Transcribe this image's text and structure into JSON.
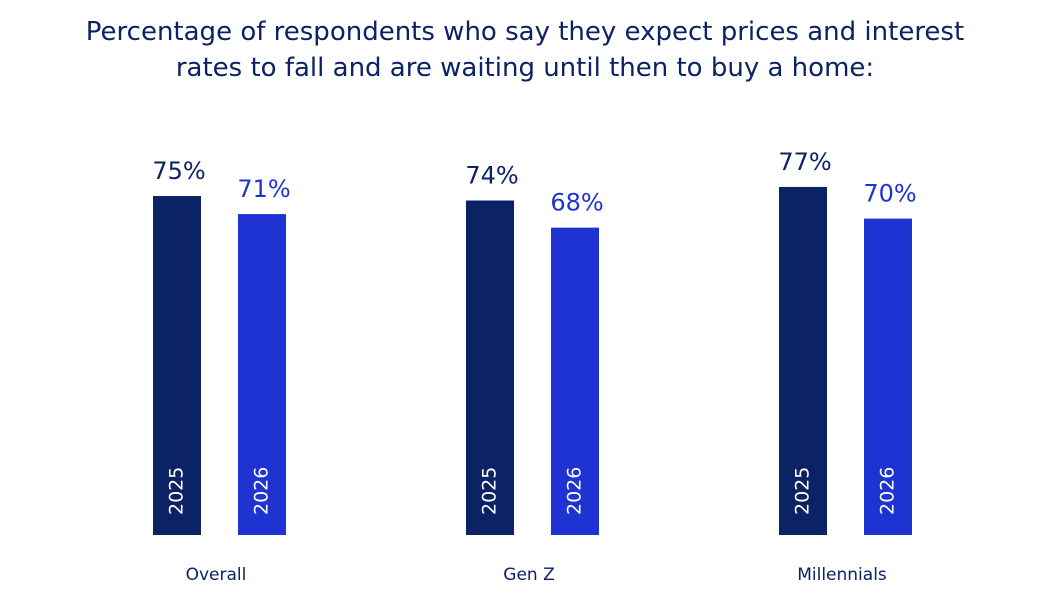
{
  "chart_data": {
    "type": "bar",
    "title": "Percentage of respondents who say they expect prices and interest rates to fall and are waiting until then to buy a home:",
    "categories": [
      "Overall",
      "Gen Z",
      "Millennials"
    ],
    "series": [
      {
        "name": "2025",
        "color": "#0b2265",
        "values": [
          75,
          74,
          77
        ],
        "value_labels": [
          "75%",
          "74%",
          "77%"
        ]
      },
      {
        "name": "2026",
        "color": "#1f33d3",
        "values": [
          71,
          68,
          70
        ],
        "value_labels": [
          "71%",
          "68%",
          "70%"
        ]
      }
    ],
    "ylim": [
      0,
      100
    ]
  }
}
